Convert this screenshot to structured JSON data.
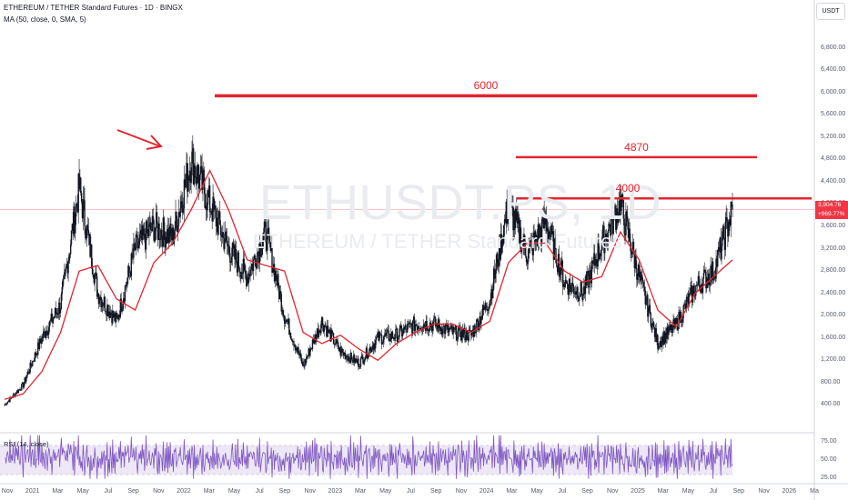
{
  "header": {
    "title": "ETHEREUM / TETHER Standard Futures · 1D · BINGX",
    "indicator": "MA (50, close, 0, SMA, 5)"
  },
  "watermark": {
    "symbol": "ETHUSDT.PS, 1D",
    "description": "ETHEREUM / TETHER Standard Futures"
  },
  "price_axis": {
    "unit": "USDT",
    "labels": [
      "6,800.00",
      "6,400.00",
      "6,000.00",
      "5,600.00",
      "5,200.00",
      "4,800.00",
      "4,400.00",
      "4,000.00",
      "3,600.00",
      "3,200.00",
      "2,800.00",
      "2,400.00",
      "2,000.00",
      "1,600.00",
      "1,200.00",
      "800.00",
      "400.00"
    ]
  },
  "last_price": {
    "value": "3,904.76",
    "change": "+969.77%"
  },
  "rsi": {
    "label": "RSI (14, close)",
    "axis_labels": [
      "75.00",
      "50.00",
      "25.00"
    ]
  },
  "levels": [
    {
      "label": "6000",
      "price": 5940
    },
    {
      "label": "4870",
      "price": 4840
    },
    {
      "label": "4000",
      "price": 4100
    }
  ],
  "time_axis": [
    "Nov",
    "2021",
    "Mar",
    "May",
    "Jul",
    "Sep",
    "Nov",
    "2022",
    "Mar",
    "May",
    "Jul",
    "Sep",
    "Nov",
    "2023",
    "Mar",
    "May",
    "Jul",
    "Sep",
    "Nov",
    "2024",
    "Mar",
    "May",
    "Jul",
    "Sep",
    "Nov",
    "2025",
    "Mar",
    "May",
    "Jul",
    "Sep",
    "Nov",
    "2026",
    "Ma"
  ],
  "colors": {
    "up": "#131722",
    "ma": "#e1252e",
    "levels": "#e1252e",
    "rsi": "#7e57c2",
    "rsi_band": "#ede7f6",
    "badge": "#f23645"
  },
  "chart_data": {
    "type": "candlestick",
    "title": "ETHEREUM / TETHER Standard Futures · 1D · BINGX",
    "ylim": [
      0,
      7200
    ],
    "x": [
      "2020-11",
      "2021-01",
      "2021-02",
      "2021-04",
      "2021-05",
      "2021-06",
      "2021-07",
      "2021-08",
      "2021-09",
      "2021-10",
      "2021-11",
      "2021-12",
      "2022-01",
      "2022-03",
      "2022-04",
      "2022-05",
      "2022-06",
      "2022-08",
      "2022-09",
      "2022-11",
      "2023-01",
      "2023-02",
      "2023-04",
      "2023-06",
      "2023-08",
      "2023-10",
      "2023-12",
      "2024-03",
      "2024-04",
      "2024-06",
      "2024-08",
      "2024-09",
      "2024-11",
      "2024-12",
      "2025-02",
      "2025-04",
      "2025-05",
      "2025-06",
      "2025-07",
      "2025-08"
    ],
    "close": [
      400,
      760,
      1600,
      2200,
      4300,
      2400,
      1900,
      3200,
      3600,
      3400,
      4800,
      4000,
      3200,
      2700,
      3500,
      2000,
      1100,
      1900,
      1350,
      1150,
      1600,
      1650,
      1850,
      1850,
      1700,
      1650,
      2300,
      4000,
      3100,
      3700,
      2600,
      2400,
      3300,
      4000,
      2700,
      1500,
      1850,
      2500,
      2800,
      3900
    ],
    "ma50": [
      500,
      600,
      1000,
      1700,
      2800,
      2900,
      2300,
      2100,
      2950,
      3300,
      3900,
      4600,
      3900,
      3000,
      2900,
      2800,
      1700,
      1500,
      1650,
      1400,
      1200,
      1500,
      1700,
      1850,
      1850,
      1700,
      1900,
      2950,
      3300,
      3300,
      2800,
      2600,
      2700,
      3500,
      3000,
      2100,
      1800,
      2400,
      2700,
      3000
    ]
  }
}
